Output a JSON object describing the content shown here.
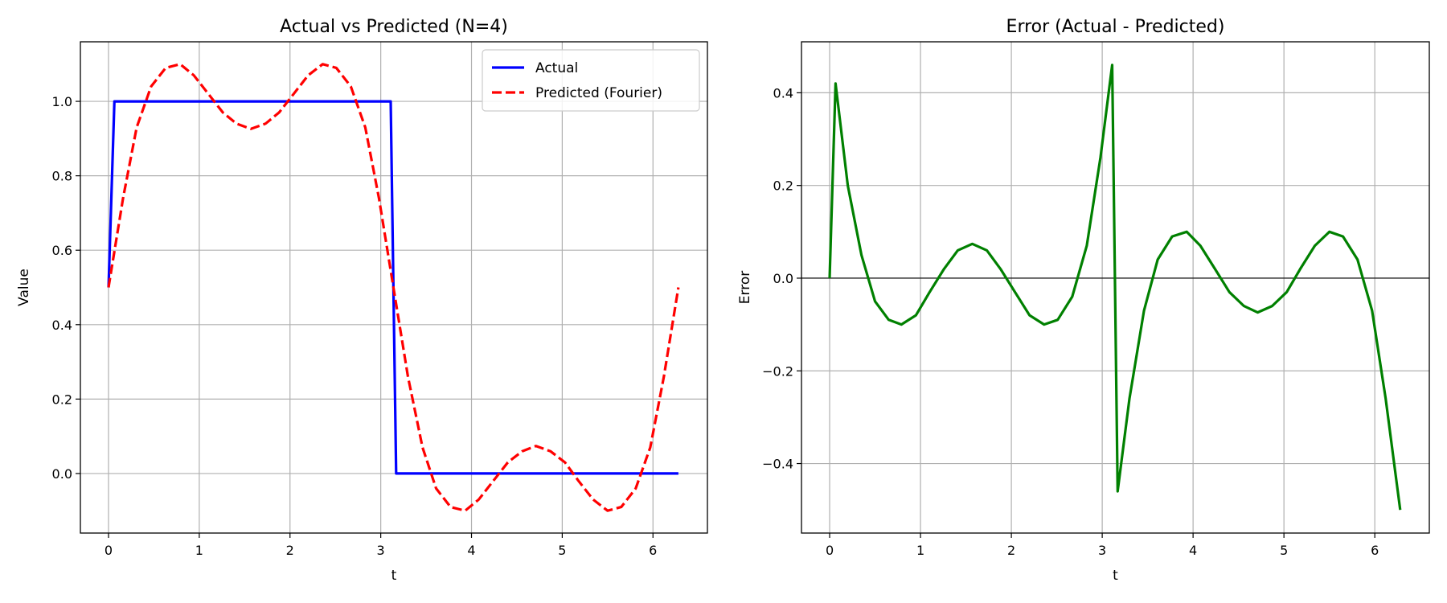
{
  "chart_data": [
    {
      "type": "line",
      "title": "Actual vs Predicted (N=4)",
      "xlabel": "t",
      "ylabel": "Value",
      "xlim": [
        -0.31,
        6.6
      ],
      "ylim": [
        -0.16,
        1.16
      ],
      "xticks": [
        0,
        1,
        2,
        3,
        4,
        5,
        6
      ],
      "yticks": [
        0.0,
        0.2,
        0.4,
        0.6,
        0.8,
        1.0
      ],
      "ytick_labels": [
        "0.0",
        "0.2",
        "0.4",
        "0.6",
        "0.8",
        "1.0"
      ],
      "grid": true,
      "legend_position": "top-right",
      "series": [
        {
          "name": "Actual",
          "color": "#0000ff",
          "style": "solid",
          "x": [
            0.0,
            0.065,
            3.11,
            3.17,
            6.28
          ],
          "y": [
            0.5,
            1.0,
            1.0,
            0.0,
            0.0
          ]
        },
        {
          "name": "Predicted (Fourier)",
          "color": "#ff0000",
          "style": "dashed",
          "x": [
            0.0,
            0.16,
            0.31,
            0.47,
            0.63,
            0.79,
            0.94,
            1.1,
            1.26,
            1.41,
            1.57,
            1.73,
            1.88,
            2.04,
            2.2,
            2.36,
            2.51,
            2.67,
            2.83,
            2.98,
            3.14,
            3.3,
            3.46,
            3.61,
            3.77,
            3.93,
            4.08,
            4.24,
            4.4,
            4.56,
            4.71,
            4.87,
            5.03,
            5.18,
            5.34,
            5.5,
            5.65,
            5.81,
            5.97,
            6.12,
            6.28
          ],
          "y": [
            0.5,
            0.74,
            0.93,
            1.04,
            1.09,
            1.1,
            1.07,
            1.02,
            0.97,
            0.94,
            0.926,
            0.94,
            0.97,
            1.02,
            1.07,
            1.1,
            1.09,
            1.04,
            0.93,
            0.74,
            0.5,
            0.26,
            0.07,
            -0.04,
            -0.09,
            -0.1,
            -0.07,
            -0.02,
            0.03,
            0.06,
            0.074,
            0.06,
            0.03,
            -0.02,
            -0.07,
            -0.1,
            -0.09,
            -0.04,
            0.07,
            0.26,
            0.5
          ]
        }
      ]
    },
    {
      "type": "line",
      "title": "Error (Actual - Predicted)",
      "xlabel": "t",
      "ylabel": "Error",
      "xlim": [
        -0.31,
        6.6
      ],
      "ylim": [
        -0.55,
        0.51
      ],
      "xticks": [
        0,
        1,
        2,
        3,
        4,
        5,
        6
      ],
      "yticks": [
        -0.4,
        -0.2,
        0.0,
        0.2,
        0.4
      ],
      "ytick_labels": [
        "−0.4",
        "−0.2",
        "0.0",
        "0.2",
        "0.4"
      ],
      "grid": true,
      "zero_line": true,
      "series": [
        {
          "color": "#008000",
          "style": "solid",
          "x": [
            0.0,
            0.065,
            0.2,
            0.35,
            0.5,
            0.65,
            0.79,
            0.95,
            1.1,
            1.26,
            1.41,
            1.57,
            1.73,
            1.88,
            2.04,
            2.2,
            2.36,
            2.51,
            2.67,
            2.83,
            2.98,
            3.11,
            3.17,
            3.3,
            3.46,
            3.61,
            3.77,
            3.93,
            4.08,
            4.24,
            4.4,
            4.56,
            4.71,
            4.87,
            5.03,
            5.18,
            5.34,
            5.5,
            5.65,
            5.81,
            5.97,
            6.12,
            6.28
          ],
          "y": [
            0.0,
            0.42,
            0.2,
            0.05,
            -0.05,
            -0.09,
            -0.1,
            -0.08,
            -0.03,
            0.02,
            0.06,
            0.074,
            0.06,
            0.02,
            -0.03,
            -0.08,
            -0.1,
            -0.09,
            -0.04,
            0.07,
            0.26,
            0.46,
            -0.46,
            -0.26,
            -0.07,
            0.04,
            0.09,
            0.1,
            0.07,
            0.02,
            -0.03,
            -0.06,
            -0.074,
            -0.06,
            -0.03,
            0.02,
            0.07,
            0.1,
            0.09,
            0.04,
            -0.07,
            -0.26,
            -0.5
          ]
        }
      ]
    }
  ]
}
